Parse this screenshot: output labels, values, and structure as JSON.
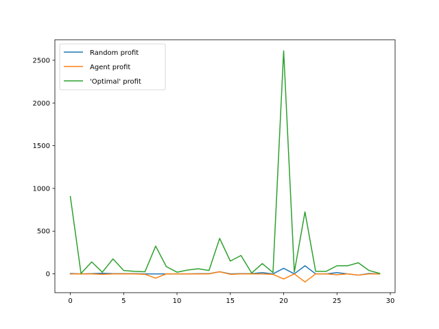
{
  "chart_data": {
    "type": "line",
    "title": "",
    "xlabel": "",
    "ylabel": "",
    "xlim": [
      -1.45,
      30.45
    ],
    "ylim": [
      -220,
      2740
    ],
    "xticks": [
      0,
      5,
      10,
      15,
      20,
      25,
      30
    ],
    "yticks": [
      0,
      500,
      1000,
      1500,
      2000,
      2500
    ],
    "grid": false,
    "legend_position": "top-left",
    "x": [
      0,
      1,
      2,
      3,
      4,
      5,
      6,
      7,
      8,
      9,
      10,
      11,
      12,
      13,
      14,
      15,
      16,
      17,
      18,
      19,
      20,
      21,
      22,
      23,
      24,
      25,
      26,
      27,
      28,
      29
    ],
    "series": [
      {
        "name": "Random profit",
        "color": "#1f77b4",
        "values": [
          5,
          0,
          3,
          8,
          3,
          3,
          3,
          0,
          0,
          0,
          0,
          0,
          3,
          3,
          25,
          0,
          3,
          3,
          15,
          0,
          65,
          0,
          95,
          0,
          0,
          15,
          0,
          -15,
          5,
          0
        ]
      },
      {
        "name": "Agent profit",
        "color": "#ff7f0e",
        "values": [
          0,
          0,
          0,
          -5,
          0,
          0,
          0,
          -5,
          -50,
          0,
          0,
          0,
          0,
          0,
          25,
          -5,
          0,
          0,
          0,
          -5,
          -60,
          0,
          -95,
          0,
          0,
          -10,
          0,
          -15,
          0,
          0
        ]
      },
      {
        "name": "'Optimal' profit",
        "color": "#2ca02c",
        "values": [
          905,
          5,
          140,
          20,
          175,
          40,
          30,
          25,
          325,
          85,
          20,
          45,
          60,
          40,
          415,
          150,
          215,
          10,
          120,
          15,
          2610,
          20,
          725,
          30,
          30,
          95,
          95,
          130,
          40,
          5
        ]
      }
    ]
  }
}
